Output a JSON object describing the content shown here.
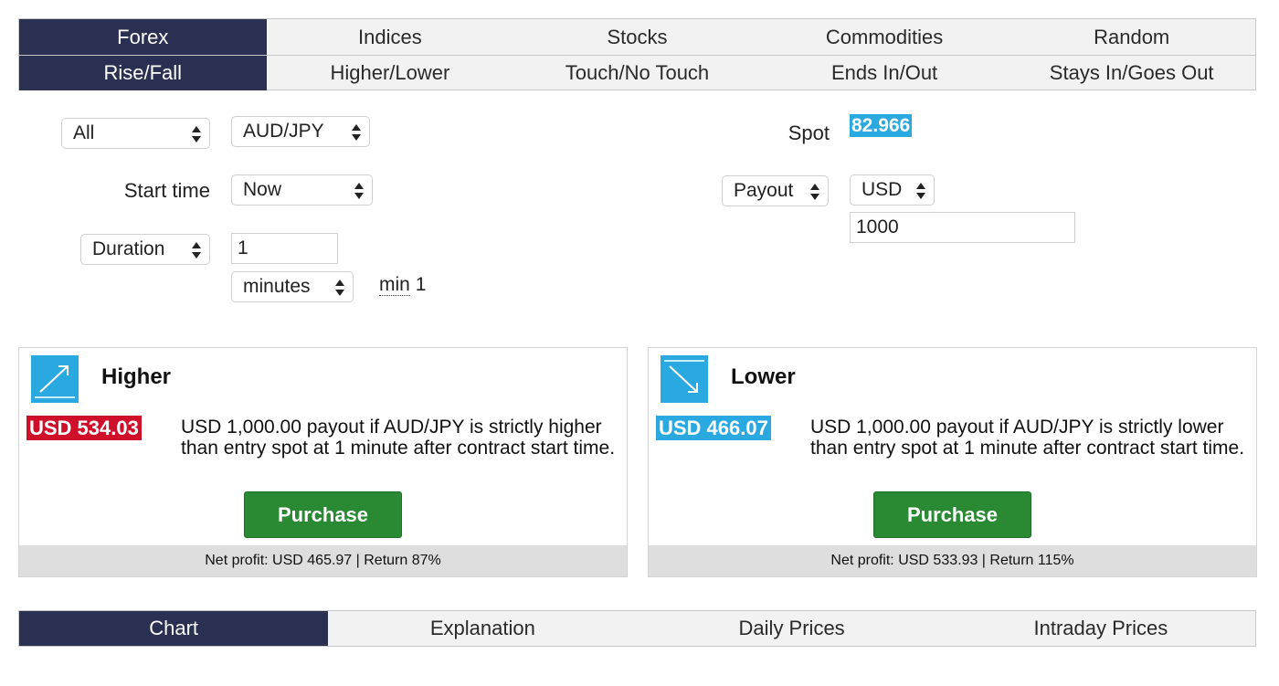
{
  "market_tabs": [
    "Forex",
    "Indices",
    "Stocks",
    "Commodities",
    "Random"
  ],
  "contract_tabs": [
    "Rise/Fall",
    "Higher/Lower",
    "Touch/No Touch",
    "Ends In/Out",
    "Stays In/Goes Out"
  ],
  "form": {
    "market_filter": "All",
    "symbol": "AUD/JPY",
    "start_time_label": "Start time",
    "start_time": "Now",
    "duration_type": "Duration",
    "duration_value": "1",
    "duration_unit": "minutes",
    "min_label": "min",
    "min_value": "1",
    "spot_label": "Spot",
    "spot_value": "82.966",
    "payout_type": "Payout",
    "currency": "USD",
    "amount": "1000"
  },
  "higher": {
    "title": "Higher",
    "price": "USD 534.03",
    "description": "USD 1,000.00 payout if AUD/JPY is strictly higher than entry spot at 1 minute after contract start time.",
    "button": "Purchase",
    "footer": "Net profit: USD 465.97 | Return 87%"
  },
  "lower": {
    "title": "Lower",
    "price": "USD 466.07",
    "description": "USD 1,000.00 payout if AUD/JPY is strictly lower than entry spot at 1 minute after contract start time.",
    "button": "Purchase",
    "footer": "Net profit: USD 533.93 | Return 115%"
  },
  "bottom_tabs": [
    "Chart",
    "Explanation",
    "Daily Prices",
    "Intraday Prices"
  ],
  "colors": {
    "nav_active": "#2a3052",
    "accent_blue": "#2aa8e0",
    "price_red": "#d0102a",
    "purchase_green": "#2a8a34"
  }
}
